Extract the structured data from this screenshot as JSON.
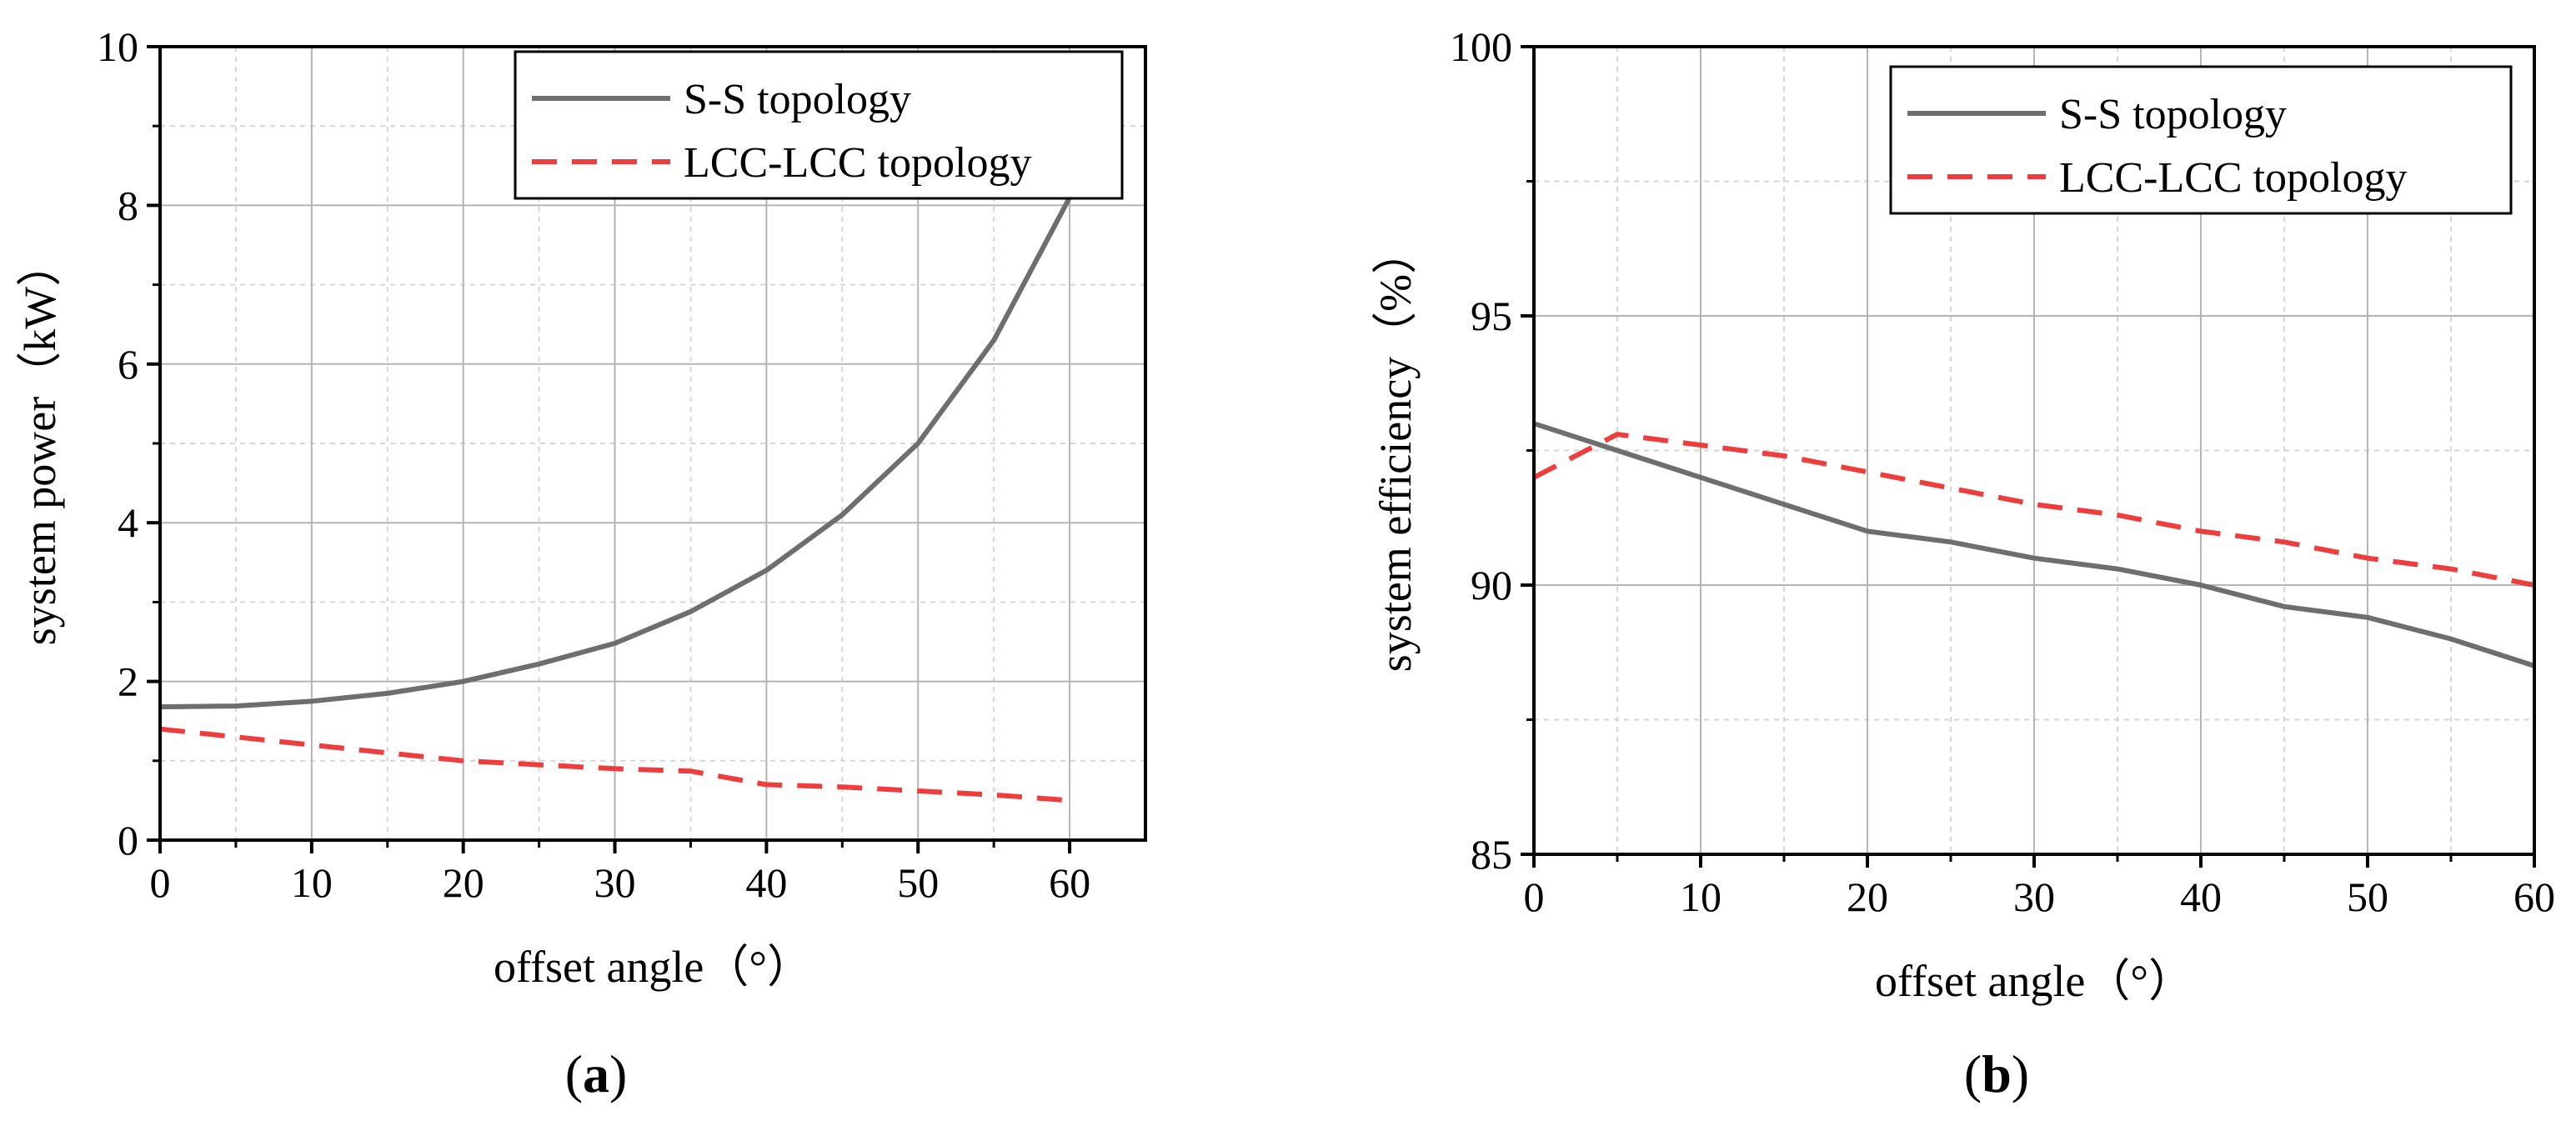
{
  "chart_data": [
    {
      "type": "line",
      "panel_label": "a",
      "xlabel": "offset angle（°）",
      "ylabel": "system power（kW）",
      "xlim": [
        0,
        65
      ],
      "ylim": [
        0,
        10
      ],
      "xticks": [
        0,
        10,
        20,
        30,
        40,
        50,
        60
      ],
      "yticks": [
        0,
        2,
        4,
        6,
        8,
        10
      ],
      "grid": true,
      "legend_position": "top-right",
      "series": [
        {
          "name": "S-S topology",
          "color": "#6e6e6e",
          "style": "solid",
          "x": [
            0,
            5,
            10,
            15,
            20,
            25,
            30,
            35,
            40,
            45,
            50,
            55,
            60
          ],
          "y": [
            1.68,
            1.69,
            1.75,
            1.85,
            2.0,
            2.22,
            2.48,
            2.88,
            3.4,
            4.1,
            5.0,
            6.3,
            8.1
          ]
        },
        {
          "name": "LCC-LCC topology",
          "color": "#ee3d3d",
          "style": "dashed",
          "x": [
            0,
            5,
            10,
            15,
            20,
            25,
            30,
            35,
            40,
            45,
            50,
            55,
            60
          ],
          "y": [
            1.4,
            1.3,
            1.2,
            1.1,
            1.0,
            0.95,
            0.9,
            0.87,
            0.7,
            0.67,
            0.62,
            0.57,
            0.5
          ]
        }
      ]
    },
    {
      "type": "line",
      "panel_label": "b",
      "xlabel": "offset angle（°）",
      "ylabel": "system efficiency（%）",
      "xlim": [
        0,
        60
      ],
      "ylim": [
        85,
        100
      ],
      "xticks": [
        0,
        10,
        20,
        30,
        40,
        50,
        60
      ],
      "yticks": [
        85,
        90,
        95,
        100
      ],
      "grid": true,
      "legend_position": "top-right",
      "series": [
        {
          "name": "S-S topology",
          "color": "#6e6e6e",
          "style": "solid",
          "x": [
            0,
            5,
            10,
            15,
            20,
            25,
            30,
            35,
            40,
            45,
            50,
            55,
            60
          ],
          "y": [
            93.0,
            92.5,
            92.0,
            91.5,
            91.0,
            90.8,
            90.5,
            90.3,
            90.0,
            89.6,
            89.4,
            89.0,
            88.5
          ]
        },
        {
          "name": "LCC-LCC topology",
          "color": "#ee3d3d",
          "style": "dashed",
          "x": [
            0,
            5,
            10,
            15,
            20,
            25,
            30,
            35,
            40,
            45,
            50,
            55,
            60
          ],
          "y": [
            92.0,
            92.8,
            92.6,
            92.4,
            92.1,
            91.8,
            91.5,
            91.3,
            91.0,
            90.8,
            90.5,
            90.3,
            90.0
          ]
        }
      ]
    }
  ]
}
